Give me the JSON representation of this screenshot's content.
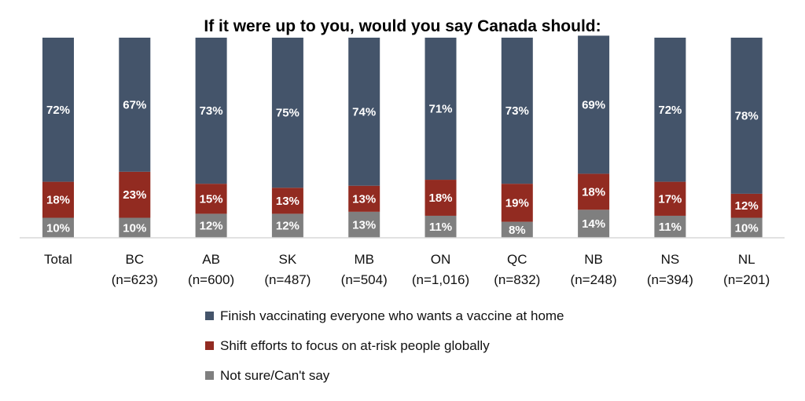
{
  "chart_data": {
    "type": "bar",
    "stacked": true,
    "title": "If it were up to you, would you say Canada should:",
    "categories": [
      "Total",
      "BC",
      "AB",
      "SK",
      "MB",
      "ON",
      "QC",
      "NB",
      "NS",
      "NL"
    ],
    "sample_sizes": [
      "",
      "(n=623)",
      "(n=600)",
      "(n=487)",
      "(n=504)",
      "(n=1,016)",
      "(n=832)",
      "(n=248)",
      "(n=394)",
      "(n=201)"
    ],
    "series": [
      {
        "name": "Not sure/Can't say",
        "color": "#7f7f7f",
        "values": [
          10,
          10,
          12,
          12,
          13,
          11,
          8,
          14,
          11,
          10
        ]
      },
      {
        "name": "Shift efforts to focus on at-risk people globally",
        "color": "#922b21",
        "values": [
          18,
          23,
          15,
          13,
          13,
          18,
          19,
          18,
          17,
          12
        ]
      },
      {
        "name": "Finish vaccinating everyone who wants a vaccine at home",
        "color": "#44546a",
        "values": [
          72,
          67,
          73,
          75,
          74,
          71,
          73,
          69,
          72,
          78
        ]
      }
    ],
    "legend_order": [
      2,
      1,
      0
    ],
    "legend_position": "bottom",
    "value_suffix": "%",
    "ylim": [
      0,
      100
    ],
    "grid": false
  }
}
